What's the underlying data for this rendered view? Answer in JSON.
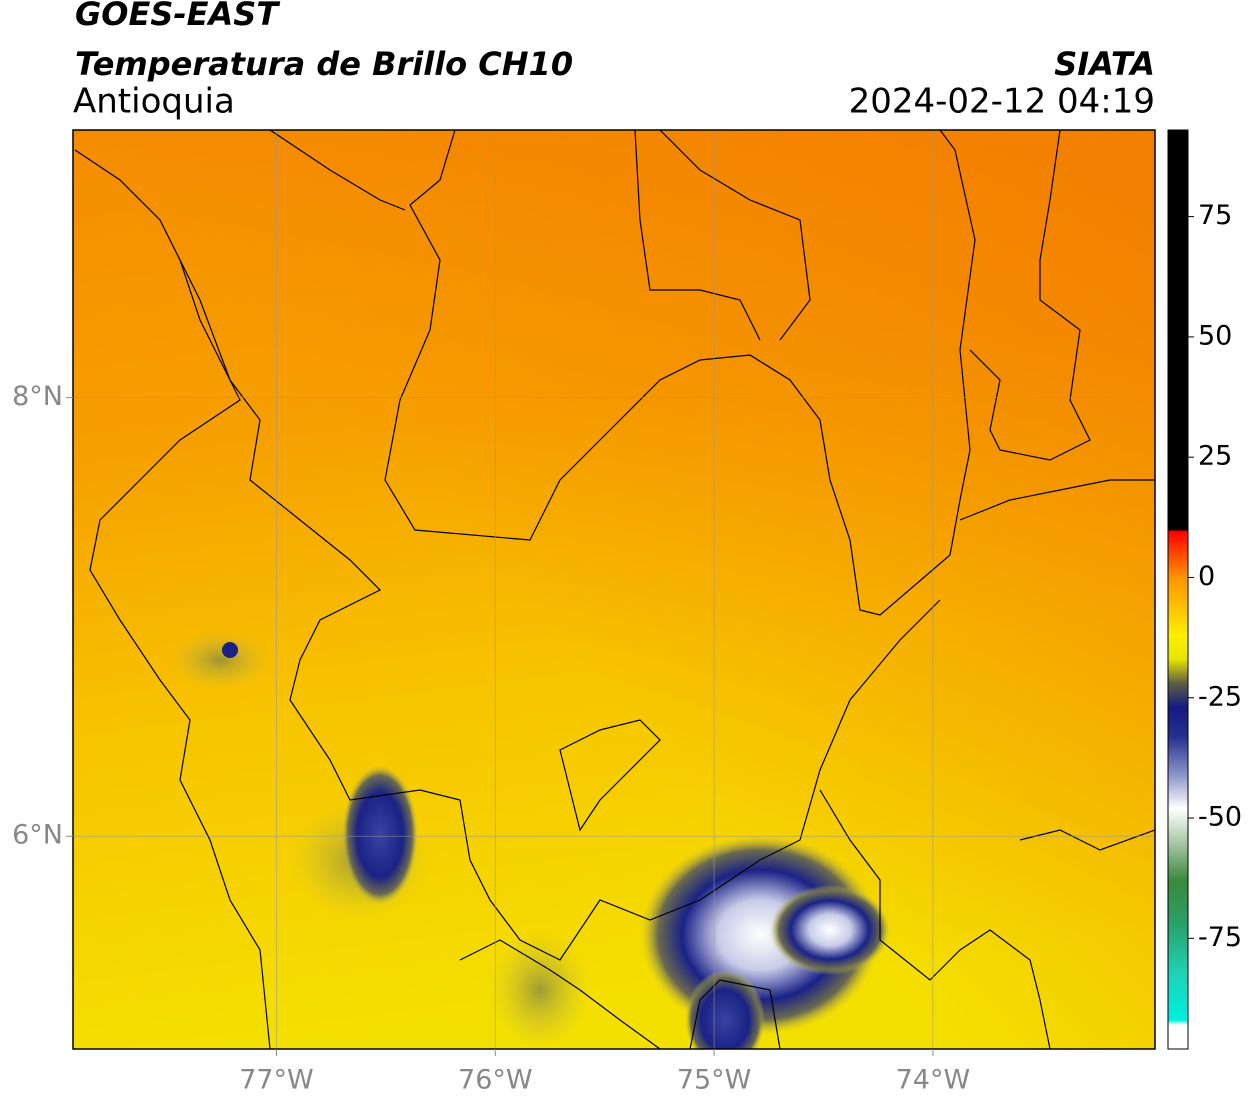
{
  "chart_data": {
    "type": "map",
    "title": "GOES-EAST",
    "subtitle": "Temperatura de Brillo CH10",
    "region": "Antioquia",
    "source": "SIATA",
    "datetime": "2024-02-12 04:19",
    "xlim": [
      -77.93,
      -72.985
    ],
    "ylim": [
      5.03,
      9.22
    ],
    "xticks": [
      {
        "value": -77,
        "label": "77°W"
      },
      {
        "value": -76,
        "label": "76°W"
      },
      {
        "value": -75,
        "label": "75°W"
      },
      {
        "value": -74,
        "label": "74°W"
      }
    ],
    "yticks": [
      {
        "value": 6,
        "label": "6°N"
      },
      {
        "value": 8,
        "label": "8°N"
      }
    ],
    "grid": true,
    "clim": [
      -98,
      93
    ],
    "cticks": [
      75,
      50,
      25,
      0,
      -25,
      -50,
      -75
    ],
    "colorscale": [
      {
        "value": 93,
        "color": "#000000"
      },
      {
        "value": 10,
        "color": "#000000"
      },
      {
        "value": 9.5,
        "color": "#ff0000"
      },
      {
        "value": 0,
        "color": "#ff9400"
      },
      {
        "value": -12,
        "color": "#ffee00"
      },
      {
        "value": -17,
        "color": "#e6e400"
      },
      {
        "value": -22,
        "color": "#5e5e46"
      },
      {
        "value": -27,
        "color": "#141a80"
      },
      {
        "value": -33,
        "color": "#24308e"
      },
      {
        "value": -41,
        "color": "#8c94c8"
      },
      {
        "value": -48,
        "color": "#ffffff"
      },
      {
        "value": -56,
        "color": "#9cc09c"
      },
      {
        "value": -63,
        "color": "#3a8a3a"
      },
      {
        "value": -72,
        "color": "#2aa068"
      },
      {
        "value": -82,
        "color": "#20d0b4"
      },
      {
        "value": -92,
        "color": "#00f0e0"
      },
      {
        "value": -93,
        "color": "#ffffff"
      },
      {
        "value": -98,
        "color": "#ffffff"
      }
    ]
  }
}
